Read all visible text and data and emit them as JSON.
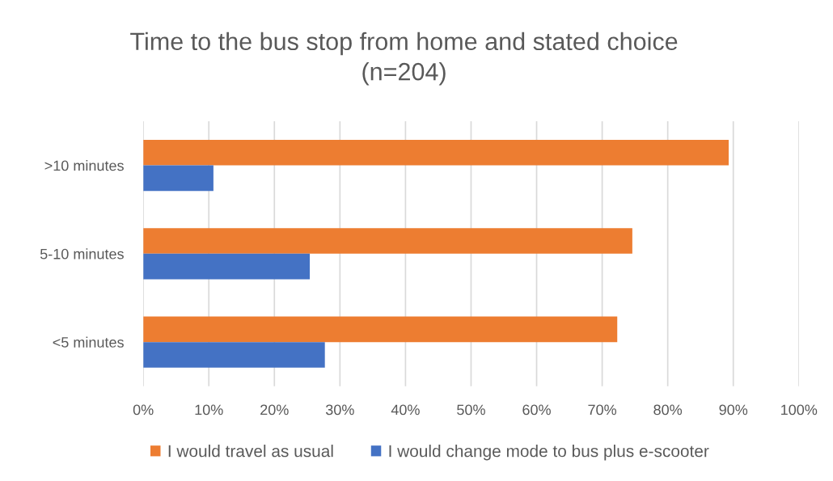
{
  "chart_data": {
    "type": "bar",
    "orientation": "horizontal",
    "title": "Time to the bus stop from home and stated choice\n(n=204)",
    "categories": [
      ">10 minutes",
      "5-10 minutes",
      "<5 minutes"
    ],
    "series": [
      {
        "name": "I would travel as usual",
        "color": "#ed7d31",
        "values": [
          89.3,
          74.6,
          72.3
        ]
      },
      {
        "name": "I would change mode to bus plus e-scooter",
        "color": "#4472c4",
        "values": [
          10.7,
          25.4,
          27.7
        ]
      }
    ],
    "xlim": [
      0,
      100
    ],
    "xticks": [
      {
        "value": 0,
        "label": "0%"
      },
      {
        "value": 10,
        "label": "10%"
      },
      {
        "value": 20,
        "label": "20%"
      },
      {
        "value": 30,
        "label": "30%"
      },
      {
        "value": 40,
        "label": "40%"
      },
      {
        "value": 50,
        "label": "50%"
      },
      {
        "value": 60,
        "label": "60%"
      },
      {
        "value": 70,
        "label": "70%"
      },
      {
        "value": 80,
        "label": "80%"
      },
      {
        "value": 90,
        "label": "90%"
      },
      {
        "value": 100,
        "label": "100%"
      }
    ],
    "grid": "x",
    "legend": "bottom"
  }
}
